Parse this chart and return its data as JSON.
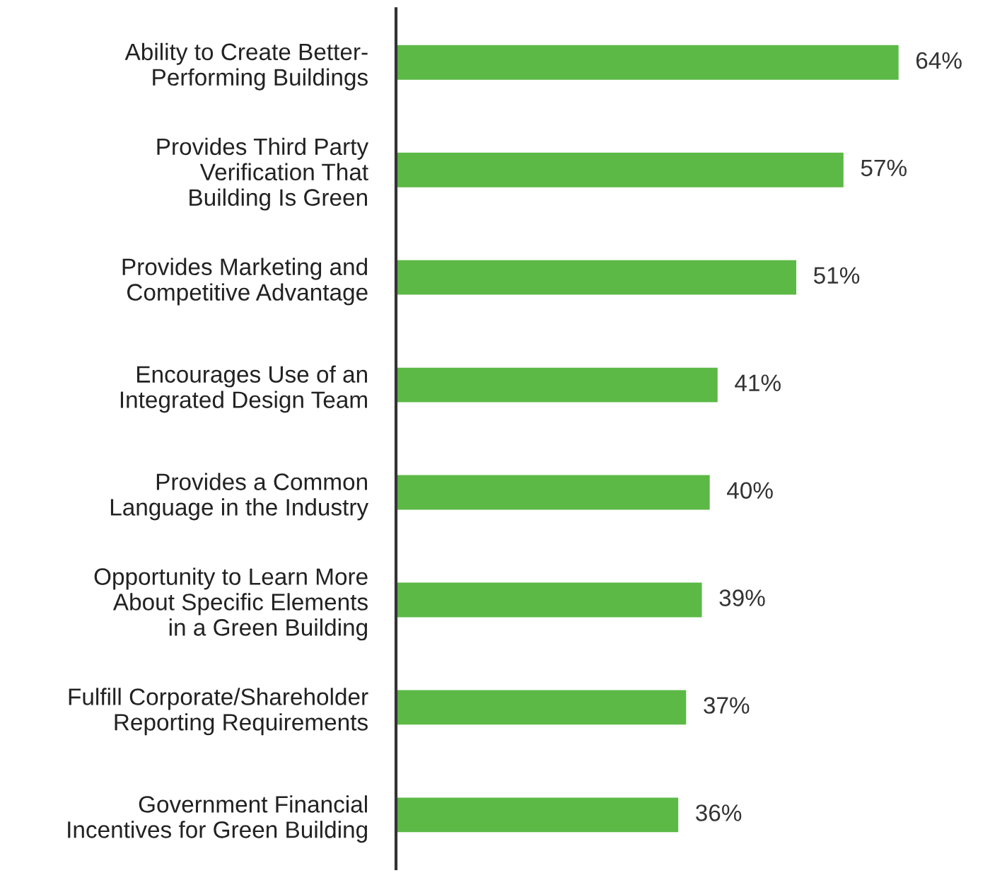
{
  "chart_data": {
    "type": "bar",
    "orientation": "horizontal",
    "categories": [
      "Ability to Create Better-\nPerforming Buildings",
      "Provides Third Party\nVerification That\nBuilding Is Green",
      "Provides Marketing and\nCompetitive Advantage",
      "Encourages Use of an\nIntegrated Design Team",
      "Provides a Common\nLanguage in the Industry",
      "Opportunity to Learn More\nAbout Specific Elements\nin a Green Building",
      "Fulfill Corporate/Shareholder\nReporting Requirements",
      "Government Financial\nIncentives for Green Building"
    ],
    "values": [
      64,
      57,
      51,
      41,
      40,
      39,
      37,
      36
    ],
    "value_labels": [
      "64%",
      "57%",
      "51%",
      "41%",
      "40%",
      "39%",
      "37%",
      "36%"
    ],
    "color": "#5cb946",
    "tick_labels": "y",
    "grid": false,
    "legend": false
  }
}
